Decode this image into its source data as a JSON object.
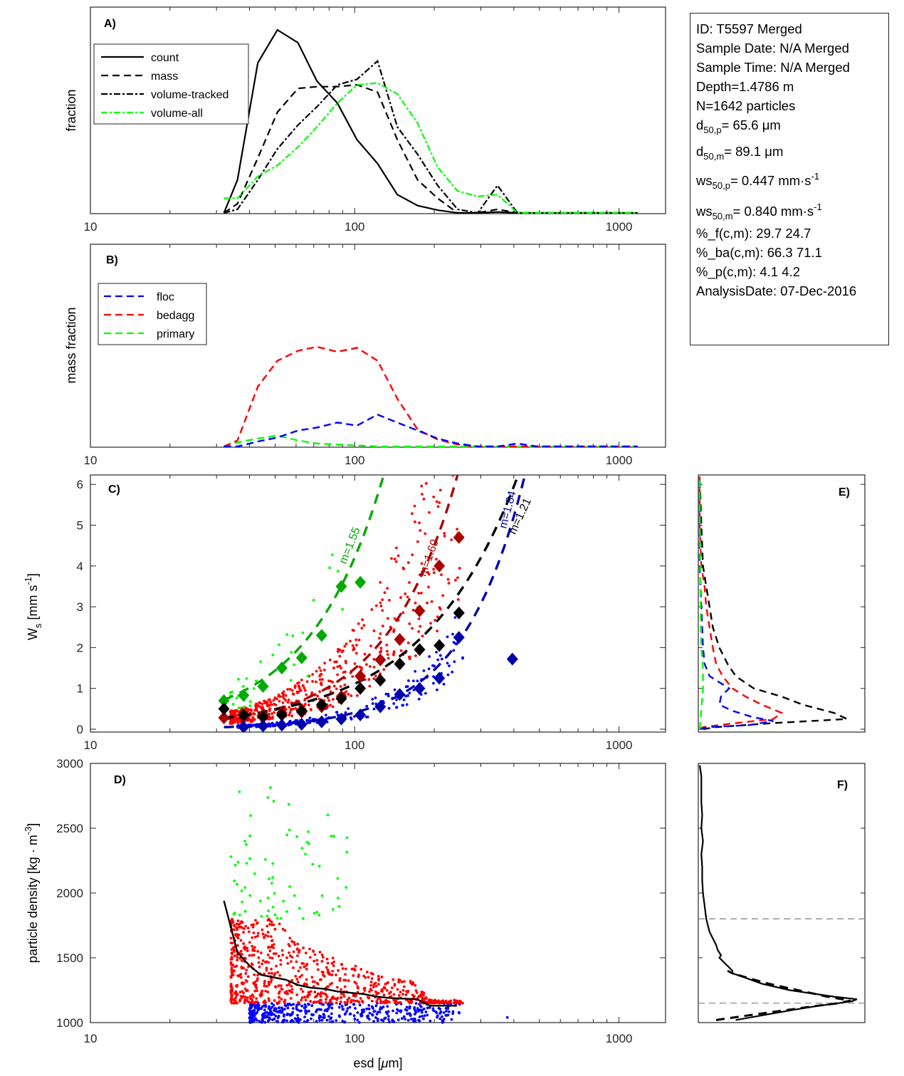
{
  "info_box": {
    "id_line": "ID: T5597 Merged",
    "sample_date": "Sample Date: N/A Merged",
    "sample_time": "Sample Time: N/A Merged",
    "depth": "Depth=1.4786 m",
    "n_particles": "N=1642 particles",
    "d50p_prefix": "d",
    "d50p_sub": "50,p",
    "d50p_value": "=  65.6 μm",
    "d50m_prefix": "d",
    "d50m_sub": "50,m",
    "d50m_value": "=  89.1 μm",
    "ws50p_prefix": "ws",
    "ws50p_sub": "50,p",
    "ws50p_value": "= 0.447 mm·s",
    "ws50p_sup": "-1",
    "ws50m_prefix": "ws",
    "ws50m_sub": "50,m",
    "ws50m_value": "= 0.840 mm·s",
    "ws50m_sup": "-1",
    "pct_f": "%_f(c,m): 29.7 24.7",
    "pct_ba": "%_ba(c,m): 66.3 71.1",
    "pct_p": "%_p(c,m): 4.1 4.2",
    "analysis_date": "AnalysisDate: 07-Dec-2016"
  },
  "colors": {
    "black": "#000000",
    "green": "#00ff00",
    "blue": "#0000ff",
    "red": "#ff0000",
    "dark_green": "#00aa00",
    "dark_red": "#aa0000",
    "dark_blue": "#0000aa",
    "grey": "#808080"
  },
  "chart_data": [
    {
      "panel": "A",
      "type": "line",
      "panel_label": "A)",
      "xlabel": "",
      "ylabel": "fraction",
      "xscale": "log",
      "xlim": [
        10,
        1500
      ],
      "xticks": [
        10,
        100,
        1000
      ],
      "xtick_labels": [
        "10",
        "100",
        "1000"
      ],
      "ylim": [
        0,
        1
      ],
      "legend_position": "top-left",
      "x": [
        32,
        36,
        43,
        51,
        61,
        72,
        86,
        102,
        122,
        145,
        173,
        206,
        245,
        292,
        347,
        413,
        492,
        585,
        697,
        830,
        988,
        1176
      ],
      "series": [
        {
          "name": "count",
          "style": "solid",
          "color": "#000000",
          "values": [
            0.0,
            0.18,
            0.82,
            1.0,
            0.93,
            0.72,
            0.6,
            0.4,
            0.27,
            0.1,
            0.04,
            0.015,
            0.0,
            0.0,
            0.005,
            0.0,
            0.0,
            0.0,
            0.0,
            0.0,
            0.0,
            0.0
          ]
        },
        {
          "name": "mass",
          "style": "dashed",
          "color": "#000000",
          "values": [
            0.0,
            0.05,
            0.3,
            0.55,
            0.68,
            0.69,
            0.69,
            0.7,
            0.66,
            0.4,
            0.18,
            0.08,
            0.0,
            0.0,
            0.02,
            0.0,
            0.0,
            0.0,
            0.0,
            0.0,
            0.0,
            0.0
          ]
        },
        {
          "name": "volume-tracked",
          "style": "dashdot",
          "color": "#000000",
          "values": [
            0.0,
            0.02,
            0.18,
            0.35,
            0.48,
            0.58,
            0.7,
            0.73,
            0.83,
            0.47,
            0.32,
            0.15,
            0.02,
            0.0,
            0.15,
            0.0,
            0.0,
            0.0,
            0.0,
            0.0,
            0.0,
            0.0
          ]
        },
        {
          "name": "volume-all",
          "style": "dashdot",
          "color": "#00ff00",
          "values": [
            0.08,
            0.08,
            0.2,
            0.26,
            0.36,
            0.47,
            0.6,
            0.7,
            0.71,
            0.65,
            0.49,
            0.25,
            0.12,
            0.09,
            0.1,
            0.0,
            0.0,
            0.0,
            0.0,
            0.0,
            0.0,
            0.0
          ]
        }
      ]
    },
    {
      "panel": "B",
      "type": "line",
      "panel_label": "B)",
      "xlabel": "",
      "ylabel": "mass fraction",
      "xscale": "log",
      "xlim": [
        10,
        1500
      ],
      "xticks": [
        10,
        100,
        1000
      ],
      "xtick_labels": [
        "10",
        "100",
        "1000"
      ],
      "ylim": [
        0,
        1
      ],
      "legend_position": "top-left",
      "x": [
        32,
        36,
        43,
        51,
        61,
        72,
        86,
        102,
        122,
        145,
        173,
        206,
        245,
        292,
        347,
        413,
        492,
        585,
        697,
        830,
        988,
        1176
      ],
      "series": [
        {
          "name": "floc",
          "style": "dashed",
          "color": "#0000ff",
          "values": [
            0.0,
            0.0,
            0.05,
            0.09,
            0.16,
            0.19,
            0.24,
            0.21,
            0.32,
            0.24,
            0.16,
            0.08,
            0.03,
            0.0,
            0.0,
            0.03,
            0.0,
            0.0,
            0.0,
            0.0,
            0.0,
            0.0
          ]
        },
        {
          "name": "bedagg",
          "style": "dashed",
          "color": "#ff0000",
          "values": [
            0.0,
            0.06,
            0.6,
            0.86,
            0.96,
            1.0,
            0.95,
            0.99,
            0.86,
            0.48,
            0.17,
            0.07,
            0.02,
            0.0,
            0.0,
            0.0,
            0.0,
            0.0,
            0.0,
            0.0,
            0.0,
            0.0
          ]
        },
        {
          "name": "primary",
          "style": "dashed",
          "color": "#00ff00",
          "values": [
            0.0,
            0.04,
            0.08,
            0.11,
            0.06,
            0.03,
            0.02,
            0.01,
            0.0,
            0.0,
            0.0,
            0.0,
            0.0,
            0.0,
            0.0,
            0.0,
            0.0,
            0.0,
            0.0,
            0.0,
            0.0,
            0.0
          ]
        }
      ]
    },
    {
      "panel": "C",
      "type": "scatter",
      "panel_label": "C)",
      "xlabel": "",
      "ylabel": "W_s [mm s^-1]",
      "ylabel_main": "W",
      "ylabel_sub": "s",
      "ylabel_rest": " [mm s",
      "ylabel_sup": "-1",
      "ylabel_end": "]",
      "xscale": "log",
      "xlim": [
        10,
        1500
      ],
      "ylim": [
        0,
        6.25
      ],
      "xticks": [
        10,
        100,
        1000
      ],
      "xtick_labels": [
        "10",
        "100",
        "1000"
      ],
      "yticks": [
        0,
        1,
        2,
        3,
        4,
        5,
        6
      ],
      "ytick_labels": [
        "0",
        "1",
        "2",
        "3",
        "4",
        "5",
        "6"
      ],
      "scatter_groups": [
        {
          "name": "floc",
          "color": "#0000ff",
          "count": 480,
          "xrange": [
            36,
            260
          ],
          "ws_model": "floc"
        },
        {
          "name": "bedagg",
          "color": "#ff0000",
          "count": 1090,
          "xrange": [
            34,
            260
          ],
          "ws_model": "bedagg"
        },
        {
          "name": "primary",
          "color": "#00ff00",
          "count": 70,
          "xrange": [
            34,
            95
          ],
          "ws_model": "primary"
        }
      ],
      "binned_medians": [
        {
          "name": "primary",
          "color": "#00aa00",
          "x": [
            32,
            38,
            45,
            53,
            63,
            75,
            89,
            105
          ],
          "y": [
            0.7,
            0.83,
            1.05,
            1.5,
            1.75,
            2.3,
            3.5,
            3.6
          ]
        },
        {
          "name": "bedagg",
          "color": "#aa0000",
          "x": [
            32,
            38,
            45,
            53,
            63,
            75,
            89,
            105,
            125,
            148,
            176,
            209,
            248
          ],
          "y": [
            0.28,
            0.28,
            0.35,
            0.4,
            0.42,
            0.55,
            0.8,
            1.3,
            1.7,
            2.2,
            2.9,
            4.0,
            4.7
          ]
        },
        {
          "name": "all",
          "color": "#000000",
          "x": [
            32,
            38,
            45,
            53,
            63,
            75,
            89,
            105,
            125,
            148,
            176,
            209,
            248
          ],
          "y": [
            0.5,
            0.35,
            0.3,
            0.35,
            0.45,
            0.6,
            0.75,
            1.0,
            1.2,
            1.6,
            1.95,
            2.05,
            2.85
          ]
        },
        {
          "name": "floc",
          "color": "#0000aa",
          "x": [
            38,
            45,
            53,
            63,
            75,
            89,
            105,
            125,
            148,
            176,
            209,
            248,
            395
          ],
          "y": [
            0.05,
            0.08,
            0.1,
            0.12,
            0.18,
            0.25,
            0.35,
            0.55,
            0.85,
            1.0,
            1.25,
            2.25,
            1.72
          ]
        }
      ],
      "fit_curves": [
        {
          "name": "primary",
          "label": "m=1.55",
          "color": "#00aa00",
          "a": 0.72,
          "m": 1.55,
          "x0": 32,
          "xmax": 140
        },
        {
          "name": "bedagg",
          "label": "m=1.60",
          "color": "#aa0000",
          "a": 0.24,
          "m": 1.6,
          "x0": 32,
          "xmax": 265
        },
        {
          "name": "all",
          "label": "m=1.21",
          "color": "#000000",
          "a": 0.28,
          "m": 1.21,
          "x0": 32,
          "xmax": 440
        },
        {
          "name": "floc",
          "label": "m=1.84",
          "color": "#0000aa",
          "a": 0.05,
          "m": 1.84,
          "x0": 32,
          "xmax": 460
        }
      ]
    },
    {
      "panel": "D",
      "type": "scatter",
      "panel_label": "D)",
      "xlabel": "esd [μm]",
      "xlabel_pre": "esd [",
      "xlabel_mu": "μ",
      "xlabel_post": "m]",
      "ylabel": "particle density [kg · m^-3]",
      "ylabel_main": "particle density [kg · m",
      "ylabel_sup": "-3",
      "ylabel_end": "]",
      "xscale": "log",
      "xlim": [
        10,
        1500
      ],
      "ylim": [
        1000,
        3000
      ],
      "xticks": [
        10,
        100,
        1000
      ],
      "xtick_labels": [
        "10",
        "100",
        "1000"
      ],
      "yticks": [
        1000,
        1500,
        2000,
        2500,
        3000
      ],
      "ytick_labels": [
        "1000",
        "1500",
        "2000",
        "2500",
        "3000"
      ],
      "class_thresholds": {
        "floc_max": 1150,
        "bedagg_max": 1800
      },
      "median_line": {
        "color": "#000000",
        "x": [
          32,
          36,
          40,
          44,
          49,
          55,
          61,
          68,
          77,
          86,
          96,
          108,
          121,
          136,
          153,
          172,
          193,
          215,
          242
        ],
        "y": [
          1940,
          1540,
          1440,
          1370,
          1350,
          1330,
          1290,
          1270,
          1260,
          1240,
          1230,
          1220,
          1200,
          1190,
          1185,
          1180,
          1130,
          1130,
          1130
        ]
      },
      "scatter_groups": [
        {
          "name": "floc",
          "color": "#0000ff",
          "yrange": [
            1000,
            1150
          ],
          "xrange": [
            40,
            250
          ]
        },
        {
          "name": "bedagg",
          "color": "#ff0000",
          "yrange": [
            1150,
            1800
          ],
          "xrange": [
            34,
            260
          ]
        },
        {
          "name": "primary",
          "color": "#00ff00",
          "yrange": [
            1800,
            2850
          ],
          "xrange": [
            34,
            95
          ]
        }
      ]
    },
    {
      "panel": "E",
      "type": "line",
      "panel_label": "E)",
      "orientation": "vertical-pdf",
      "ylim": [
        0,
        6.25
      ],
      "yticks": [
        0,
        1,
        2,
        3,
        4,
        5,
        6
      ],
      "xlim": [
        0,
        1
      ],
      "series": [
        {
          "name": "all",
          "color": "#000000",
          "style": "dashed",
          "ws": [
            0.0,
            0.05,
            0.15,
            0.25,
            0.4,
            0.6,
            0.8,
            1.0,
            1.3,
            1.6,
            2.0,
            2.5,
            3.0,
            3.5,
            4.0,
            5.0,
            6.2
          ],
          "pdf": [
            0.02,
            0.1,
            0.45,
            0.9,
            0.82,
            0.63,
            0.5,
            0.33,
            0.22,
            0.17,
            0.12,
            0.08,
            0.06,
            0.04,
            0.02,
            0.01,
            0.0
          ]
        },
        {
          "name": "bedagg",
          "color": "#ff0000",
          "style": "dashed",
          "ws": [
            0.0,
            0.05,
            0.15,
            0.25,
            0.4,
            0.6,
            0.8,
            1.0,
            1.3,
            1.6,
            2.0,
            2.5,
            3.0,
            3.5,
            4.0,
            5.0,
            6.2
          ],
          "pdf": [
            0.0,
            0.02,
            0.22,
            0.45,
            0.5,
            0.38,
            0.28,
            0.2,
            0.14,
            0.1,
            0.08,
            0.06,
            0.04,
            0.03,
            0.01,
            0.0,
            0.0
          ]
        },
        {
          "name": "floc",
          "color": "#0000ff",
          "style": "dashed",
          "ws": [
            0.0,
            0.05,
            0.1,
            0.2,
            0.3,
            0.45,
            0.6,
            0.8,
            1.0,
            1.3,
            1.6,
            2.0,
            3.0,
            4.0,
            6.2
          ],
          "pdf": [
            0.0,
            0.05,
            0.3,
            0.45,
            0.32,
            0.2,
            0.12,
            0.13,
            0.18,
            0.06,
            0.03,
            0.02,
            0.01,
            0.0,
            0.0
          ]
        },
        {
          "name": "primary",
          "color": "#00ff00",
          "style": "dashed",
          "ws": [
            0.0,
            0.5,
            1.0,
            1.5,
            2.0,
            3.0,
            4.0,
            5.0,
            6.2
          ],
          "pdf": [
            0.0,
            0.01,
            0.02,
            0.02,
            0.01,
            0.005,
            0.003,
            0.001,
            0.0
          ]
        }
      ]
    },
    {
      "panel": "F",
      "type": "line",
      "panel_label": "F)",
      "orientation": "vertical-pdf",
      "ylim": [
        1000,
        3000
      ],
      "yticks": [
        1000,
        1500,
        2000,
        2500,
        3000
      ],
      "xlim": [
        0,
        1
      ],
      "hlines": [
        {
          "y": 1800,
          "color": "#808080",
          "style": "dashed"
        },
        {
          "y": 1150,
          "color": "#808080",
          "style": "dashed"
        }
      ],
      "series": [
        {
          "name": "observed",
          "color": "#000000",
          "style": "solid",
          "rho": [
            1020,
            1060,
            1100,
            1130,
            1150,
            1165,
            1180,
            1200,
            1250,
            1300,
            1350,
            1380,
            1400,
            1450,
            1500,
            1520,
            1560,
            1600,
            1650,
            1700,
            1750,
            1800,
            1900,
            2000,
            2100,
            2200,
            2300,
            2400,
            2500,
            2600,
            2700,
            2800,
            2900,
            2985
          ],
          "pdf": [
            0.22,
            0.4,
            0.58,
            0.73,
            0.85,
            0.93,
            0.96,
            0.82,
            0.55,
            0.38,
            0.27,
            0.2,
            0.2,
            0.16,
            0.12,
            0.13,
            0.11,
            0.1,
            0.08,
            0.06,
            0.05,
            0.04,
            0.03,
            0.02,
            0.015,
            0.015,
            0.01,
            0.02,
            0.01,
            0.015,
            0.01,
            0.01,
            0.01,
            0.0
          ]
        },
        {
          "name": "fit",
          "color": "#000000",
          "style": "dashed",
          "rho": [
            1020,
            1060,
            1100,
            1130,
            1150,
            1170,
            1200,
            1250,
            1300,
            1350,
            1380,
            1400
          ],
          "pdf": [
            0.1,
            0.32,
            0.55,
            0.72,
            0.85,
            0.92,
            0.78,
            0.6,
            0.42,
            0.28,
            0.2,
            0.17
          ]
        }
      ]
    }
  ]
}
